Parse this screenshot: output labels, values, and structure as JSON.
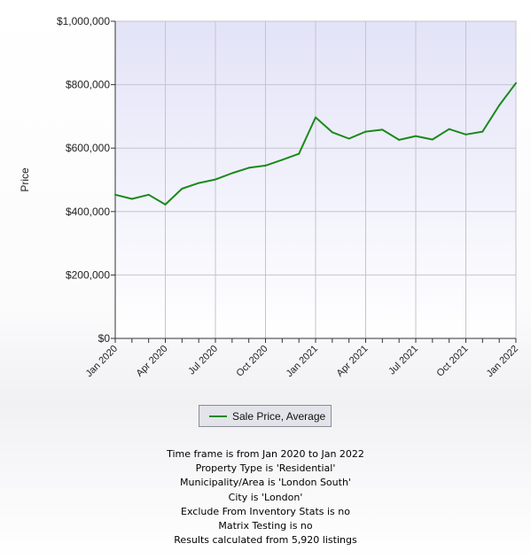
{
  "chart_data": {
    "type": "line",
    "ylabel": "Price",
    "ylim": [
      0,
      1000000
    ],
    "y_ticks": [
      "$1,000,000",
      "$800,000",
      "$600,000",
      "$400,000",
      "$200,000",
      "$0"
    ],
    "x_tick_labels": [
      "Jan 2020",
      "Apr 2020",
      "Jul 2020",
      "Oct 2020",
      "Jan 2021",
      "Apr 2021",
      "Jul 2021",
      "Oct 2021",
      "Jan 2022"
    ],
    "x": [
      "Jan 2020",
      "Feb 2020",
      "Mar 2020",
      "Apr 2020",
      "May 2020",
      "Jun 2020",
      "Jul 2020",
      "Aug 2020",
      "Sep 2020",
      "Oct 2020",
      "Nov 2020",
      "Dec 2020",
      "Jan 2021",
      "Feb 2021",
      "Mar 2021",
      "Apr 2021",
      "May 2021",
      "Jun 2021",
      "Jul 2021",
      "Aug 2021",
      "Sep 2021",
      "Oct 2021",
      "Nov 2021",
      "Dec 2021",
      "Jan 2022"
    ],
    "series": [
      {
        "name": "Sale Price, Average",
        "color": "#1a8a1a",
        "values": [
          453000,
          440000,
          453000,
          422000,
          472000,
          490000,
          501000,
          521000,
          538000,
          545000,
          563000,
          582000,
          697000,
          650000,
          630000,
          652000,
          658000,
          626000,
          638000,
          627000,
          660000,
          643000,
          652000,
          735000,
          805000
        ]
      }
    ],
    "grid": true,
    "legend_position": "bottom"
  },
  "notes": [
    "Time frame is from Jan 2020 to Jan 2022",
    "Property Type is 'Residential'",
    "Municipality/Area is 'London South'",
    "City is 'London'",
    "Exclude From Inventory Stats is no",
    "Matrix Testing is no",
    "Results calculated from 5,920 listings"
  ]
}
